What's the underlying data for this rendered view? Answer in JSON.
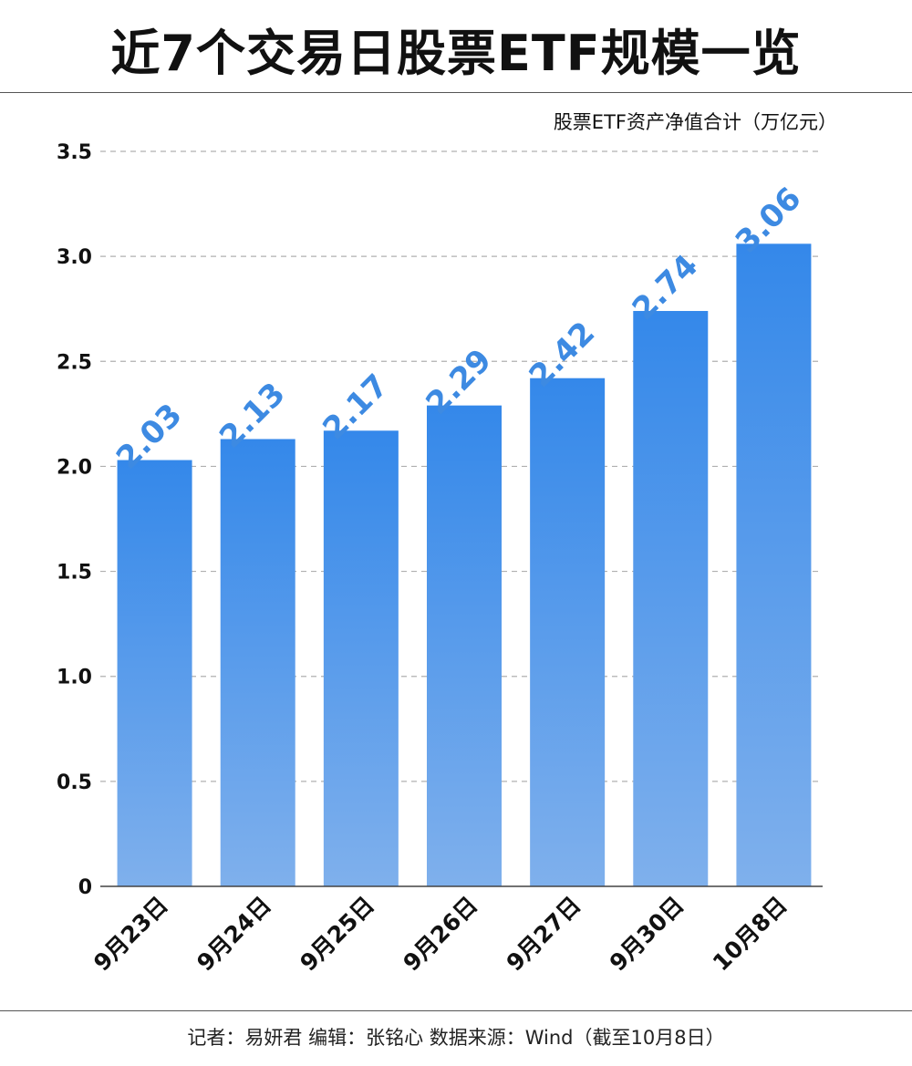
{
  "title": "近7个交易日股票ETF规模一览",
  "footer": "记者：易妍君 编辑：张铭心  数据来源：Wind（截至10月8日）",
  "chart_data": {
    "type": "bar",
    "title": "近7个交易日股票ETF规模一览",
    "ylabel": "股票ETF资产净值合计（万亿元）",
    "xlabel": "",
    "categories": [
      "9月23日",
      "9月24日",
      "9月25日",
      "9月26日",
      "9月27日",
      "9月30日",
      "10月8日"
    ],
    "values": [
      2.03,
      2.13,
      2.17,
      2.29,
      2.42,
      2.74,
      3.06
    ],
    "value_labels": [
      "2.03",
      "2.13",
      "2.17",
      "2.29",
      "2.42",
      "2.74",
      "3.06"
    ],
    "ylim": [
      0,
      3.5
    ],
    "yticks": [
      "0",
      "0.5",
      "1.0",
      "1.5",
      "2.0",
      "2.5",
      "3.0",
      "3.5"
    ],
    "grid": true,
    "legend": "none",
    "colors": {
      "bar_top": "#3488ea",
      "bar_bottom": "#7fb0ec",
      "label": "#3d8ae2",
      "grid": "#b0b0b0",
      "axis": "#444444"
    }
  }
}
